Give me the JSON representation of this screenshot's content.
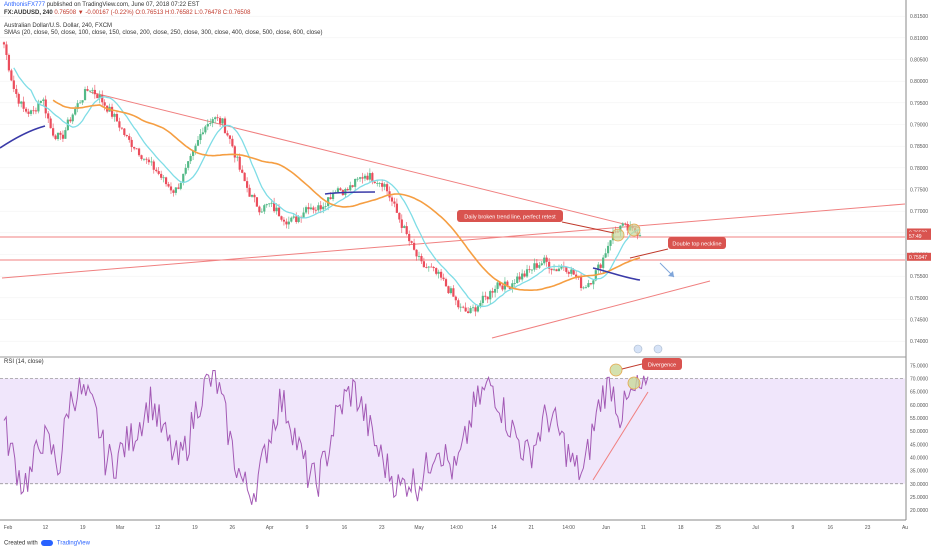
{
  "header": {
    "author": "AnthonisFX777",
    "published": "published on TradingView.com, June 07, 2018 07:22 EST",
    "symbol": "FX:AUDUSD, 240",
    "quote": "0.76508 ▼ -0.00167 (-0.22%) O:0.76513 H:0.76582 L:0.76478 C:0.76508",
    "title": "Australian Dollar/U.S. Dollar, 240, FXCM",
    "sma_legend": "SMAs (20, close, 50, close, 100, close, 150, close, 200, close, 250, close, 300, close, 400, close, 500, close, 600, close)",
    "rsi_legend": "RSI (14, close)"
  },
  "footer": {
    "created_with": "Created with",
    "brand": "TradingView"
  },
  "colors": {
    "up": "#26a69a",
    "down": "#ef5350",
    "candle_up": "#53b987",
    "candle_down": "#eb4d5c",
    "sma_fast": "#7fdde6",
    "sma_slow": "#f59e42",
    "sma_long": "#3a3aa8",
    "trend": "#f08080",
    "rsi": "#a35ab5",
    "rsi_band": "#f0e6fb",
    "label_bg": "#d9534f"
  },
  "chart_data": {
    "type": "candlestick",
    "price_axis": {
      "ticks": [
        "0.81500",
        "0.81000",
        "0.80500",
        "0.80000",
        "0.79500",
        "0.79000",
        "0.78500",
        "0.78000",
        "0.77500",
        "0.77000",
        "0.76500",
        "0.76000",
        "0.75500",
        "0.75000",
        "0.74500",
        "0.74000"
      ],
      "ylim": [
        0.7375,
        0.8155
      ]
    },
    "price_labels": [
      {
        "value": 0.76508,
        "text": "0.76508"
      },
      {
        "value": 0.7643,
        "text": "57:49"
      },
      {
        "value": 0.75947,
        "text": "0.75947"
      }
    ],
    "rsi_axis": {
      "ticks": [
        "75.0000",
        "70.0000",
        "65.0000",
        "60.0000",
        "55.0000",
        "50.0000",
        "45.0000",
        "40.0000",
        "35.0000",
        "30.0000",
        "25.0000",
        "20.0000"
      ],
      "ylim": [
        17,
        77
      ],
      "band": [
        30,
        70
      ]
    },
    "time_axis": [
      "Feb",
      "12",
      "19",
      "Mar",
      "12",
      "19",
      "26",
      "Apr",
      "9",
      "16",
      "23",
      "May",
      "14:00",
      "14",
      "21",
      "14:00",
      "Jun",
      "11",
      "18",
      "25",
      "Jul",
      "9",
      "16",
      "23",
      "Au"
    ],
    "close_path": [
      0.8085,
      0.7985,
      0.7935,
      0.7925,
      0.7965,
      0.7885,
      0.7865,
      0.7915,
      0.7955,
      0.7985,
      0.7965,
      0.7935,
      0.7905,
      0.7865,
      0.7845,
      0.7815,
      0.7795,
      0.7765,
      0.7745,
      0.7785,
      0.7835,
      0.7895,
      0.7915,
      0.7905,
      0.7855,
      0.7785,
      0.7735,
      0.7705,
      0.7715,
      0.7695,
      0.7675,
      0.7685,
      0.7715,
      0.7705,
      0.7725,
      0.7755,
      0.7745,
      0.7765,
      0.7785,
      0.7775,
      0.7765,
      0.7715,
      0.7665,
      0.7615,
      0.7575,
      0.7565,
      0.7545,
      0.7515,
      0.7475,
      0.7465,
      0.7485,
      0.7505,
      0.7535,
      0.7525,
      0.7545,
      0.7555,
      0.7575,
      0.7585,
      0.7565,
      0.7575,
      0.7555,
      0.7525,
      0.7545,
      0.7585,
      0.7645,
      0.7665,
      0.7655,
      0.7651
    ],
    "rsi_path": [
      52,
      40,
      30,
      34,
      48,
      44,
      36,
      60,
      66,
      62,
      56,
      40,
      38,
      44,
      48,
      55,
      62,
      52,
      44,
      38,
      46,
      60,
      68,
      70,
      56,
      40,
      30,
      26,
      36,
      50,
      62,
      56,
      44,
      34,
      30,
      40,
      54,
      62,
      66,
      58,
      48,
      40,
      34,
      28,
      32,
      30,
      36,
      46,
      40,
      34,
      44,
      58,
      64,
      68,
      60,
      52,
      46,
      40,
      48,
      56,
      52,
      44,
      36,
      34,
      50,
      64,
      68,
      56,
      62,
      66,
      64
    ],
    "annotations": [
      {
        "text": "Daily broken trend line, perfect retest"
      },
      {
        "text": "Double top neckline"
      },
      {
        "text": "Divergence"
      }
    ]
  }
}
